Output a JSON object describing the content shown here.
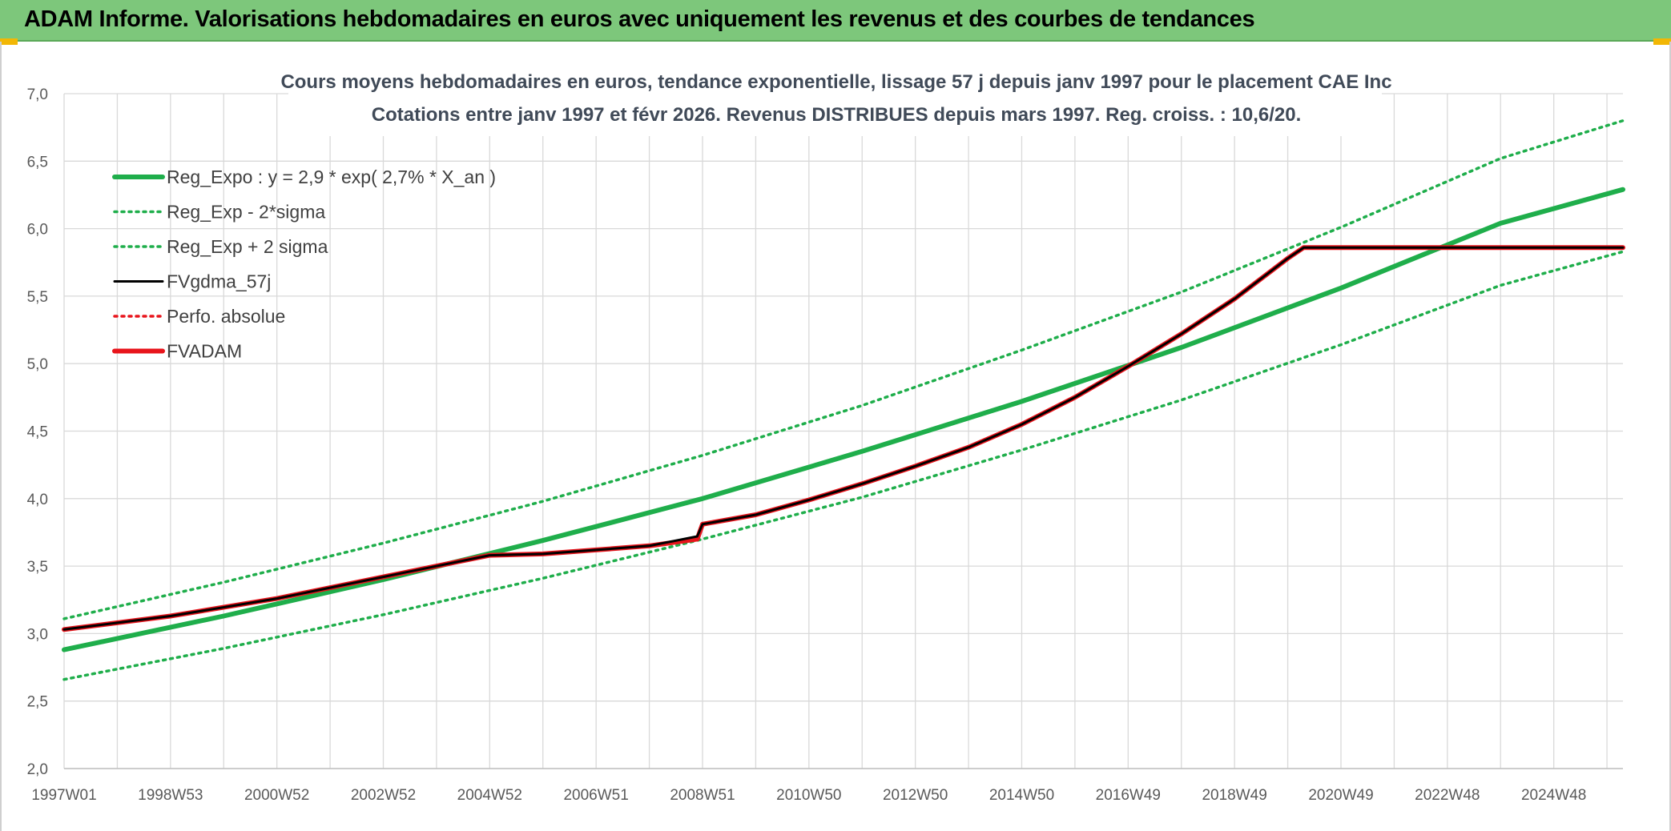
{
  "banner": {
    "title": "ADAM Informe. Valorisations hebdomadaires en euros avec uniquement les revenus et des courbes de tendances",
    "background": "#7dc77b",
    "accent": "#f2b705"
  },
  "chart_data": {
    "type": "line",
    "title": "Cours moyens hebdomadaires en euros, tendance exponentielle, lissage 57 j depuis janv 1997 pour le placement CAE Inc",
    "subtitle": "Cotations entre janv 1997 et févr 2026. Revenus DISTRIBUES depuis mars 1997. Reg. croiss. : 10,6/20.",
    "xlabel": "",
    "ylabel": "",
    "xlim": [
      1997.0,
      2026.3
    ],
    "ylim": [
      2.0,
      7.0
    ],
    "y_ticks": [
      2.0,
      2.5,
      3.0,
      3.5,
      4.0,
      4.5,
      5.0,
      5.5,
      6.0,
      6.5,
      7.0
    ],
    "y_tick_labels": [
      "2,0",
      "2,5",
      "3,0",
      "3,5",
      "4,0",
      "4,5",
      "5,0",
      "5,5",
      "6,0",
      "6,5",
      "7,0"
    ],
    "x_ticks": [
      1997.0,
      1999.0,
      2001.0,
      2003.0,
      2005.0,
      2007.0,
      2009.0,
      2011.0,
      2013.0,
      2015.0,
      2017.0,
      2019.0,
      2021.0,
      2023.0,
      2025.0
    ],
    "x_tick_labels": [
      "1997W01",
      "1998W53",
      "2000W52",
      "2002W52",
      "2004W52",
      "2006W51",
      "2008W51",
      "2010W50",
      "2012W50",
      "2014W50",
      "2016W49",
      "2018W49",
      "2020W49",
      "2022W48",
      "2024W48"
    ],
    "grid": true,
    "legend_position": "top-left",
    "series": [
      {
        "name": "Reg_Expo : y = 2,9 * exp( 2,7% *  X_an )",
        "color": "#1fae4b",
        "style": "solid-thick",
        "x": [
          1997.0,
          2000.0,
          2003.0,
          2006.0,
          2009.0,
          2012.0,
          2015.0,
          2018.0,
          2021.0,
          2024.0,
          2026.3
        ],
        "y": [
          2.88,
          3.13,
          3.4,
          3.69,
          4.0,
          4.35,
          4.72,
          5.12,
          5.56,
          6.04,
          6.29
        ]
      },
      {
        "name": "Reg_Exp - 2*sigma",
        "color": "#1fae4b",
        "style": "dotted",
        "x": [
          1997.0,
          2000.0,
          2003.0,
          2006.0,
          2009.0,
          2012.0,
          2015.0,
          2018.0,
          2021.0,
          2024.0,
          2026.3
        ],
        "y": [
          2.66,
          2.89,
          3.14,
          3.41,
          3.7,
          4.01,
          4.36,
          4.73,
          5.14,
          5.58,
          5.83
        ]
      },
      {
        "name": "Reg_Exp + 2 sigma",
        "color": "#1fae4b",
        "style": "dotted",
        "x": [
          1997.0,
          2000.0,
          2003.0,
          2006.0,
          2009.0,
          2012.0,
          2015.0,
          2018.0,
          2021.0,
          2024.0,
          2026.3
        ],
        "y": [
          3.11,
          3.38,
          3.67,
          3.98,
          4.32,
          4.69,
          5.1,
          5.53,
          6.01,
          6.52,
          6.8
        ]
      },
      {
        "name": "FVgdma_57j",
        "color": "#000000",
        "style": "solid",
        "x": [
          1997.0,
          1999.0,
          2001.0,
          2003.0,
          2005.0,
          2006.0,
          2007.0,
          2008.0,
          2008.9,
          2009.0,
          2010.0,
          2011.0,
          2012.0,
          2013.0,
          2014.0,
          2015.0,
          2016.0,
          2017.0,
          2018.0,
          2019.0,
          2020.0,
          2020.3,
          2021.0,
          2023.0,
          2025.0,
          2026.3
        ],
        "y": [
          3.03,
          3.13,
          3.26,
          3.42,
          3.58,
          3.59,
          3.62,
          3.65,
          3.72,
          3.81,
          3.88,
          3.99,
          4.11,
          4.24,
          4.38,
          4.55,
          4.75,
          4.98,
          5.22,
          5.48,
          5.78,
          5.86,
          5.86,
          5.86,
          5.86,
          5.86
        ]
      },
      {
        "name": "Perfo. absolue",
        "color": "#e8141b",
        "style": "dotted",
        "x": [],
        "y": []
      },
      {
        "name": "FVADAM",
        "color": "#e8141b",
        "style": "solid-thick",
        "x": [
          1997.0,
          1999.0,
          2001.0,
          2003.0,
          2005.0,
          2006.0,
          2007.0,
          2008.0,
          2008.9,
          2009.0,
          2010.0,
          2011.0,
          2012.0,
          2013.0,
          2014.0,
          2015.0,
          2016.0,
          2017.0,
          2018.0,
          2019.0,
          2020.0,
          2020.3,
          2021.0,
          2023.0,
          2025.0,
          2026.3
        ],
        "y": [
          3.03,
          3.13,
          3.26,
          3.42,
          3.58,
          3.59,
          3.62,
          3.65,
          3.7,
          3.81,
          3.88,
          3.99,
          4.11,
          4.24,
          4.38,
          4.55,
          4.75,
          4.98,
          5.22,
          5.48,
          5.78,
          5.86,
          5.86,
          5.86,
          5.86,
          5.86
        ]
      }
    ]
  }
}
